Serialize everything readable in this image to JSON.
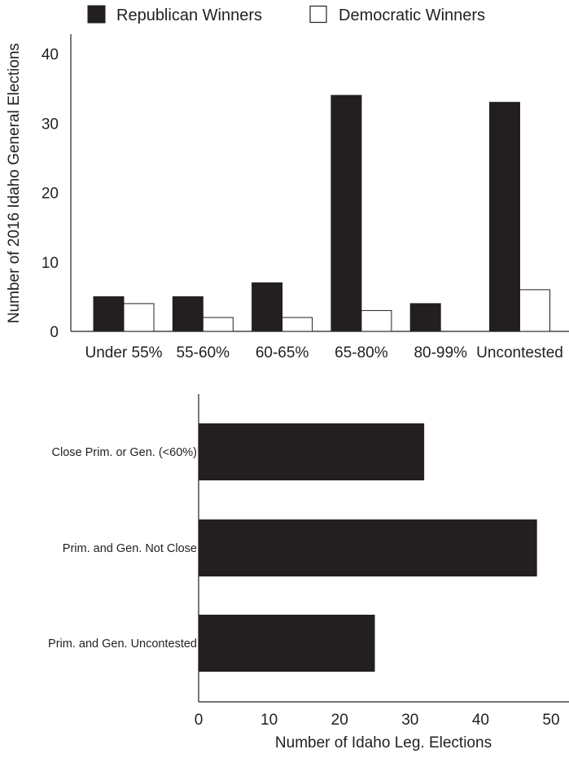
{
  "chart_data": [
    {
      "type": "bar",
      "orientation": "vertical",
      "ylabel": "Number of 2016 Idaho General Elections",
      "xlabel": "",
      "ylim": [
        0,
        40
      ],
      "yticks": [
        0,
        10,
        20,
        30,
        40
      ],
      "categories": [
        "Under 55%",
        "55-60%",
        "60-65%",
        "65-80%",
        "80-99%",
        "Uncontested"
      ],
      "series": [
        {
          "name": "Republican Winners",
          "color": "#231f20",
          "values": [
            5,
            5,
            7,
            34,
            4,
            33
          ]
        },
        {
          "name": "Democratic Winners",
          "color": "#ffffff",
          "values": [
            4,
            2,
            2,
            3,
            0,
            6
          ]
        }
      ],
      "legend_position": "top",
      "grid": false
    },
    {
      "type": "bar",
      "orientation": "horizontal",
      "xlabel": "Number of Idaho Leg. Elections",
      "ylabel": "",
      "xlim": [
        0,
        50
      ],
      "xticks": [
        0,
        10,
        20,
        30,
        40,
        50
      ],
      "categories": [
        "Close Prim. or Gen. (<60%)",
        "Prim. and Gen. Not Close",
        "Prim. and Gen. Uncontested"
      ],
      "values": [
        32,
        48,
        25
      ],
      "color": "#231f20",
      "grid": false
    }
  ]
}
